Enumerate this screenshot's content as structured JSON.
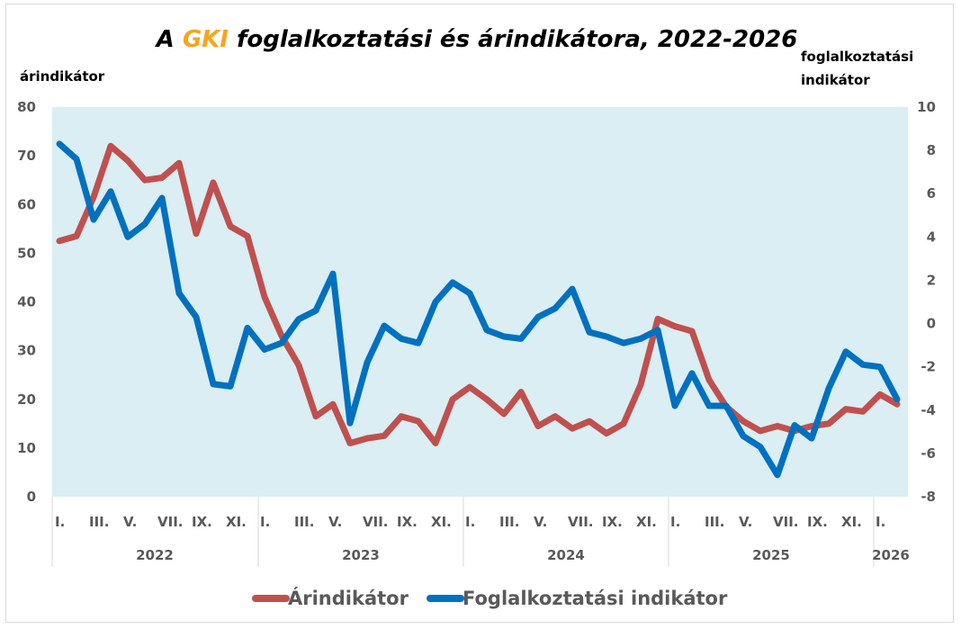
{
  "chart_data": {
    "type": "line",
    "title_parts": {
      "prefix": "A ",
      "accent": "GKI",
      "suffix": " foglalkoztatási és árindikátora, 2022-2026"
    },
    "y_left_label": "árindikátor",
    "y_right_label_line1": "foglalkoztatási",
    "y_right_label_line2": "indikátor",
    "y_left_range": [
      0,
      80
    ],
    "y_left_ticks": [
      "0",
      "10",
      "20",
      "30",
      "40",
      "50",
      "60",
      "70",
      "80"
    ],
    "y_right_range": [
      -8,
      10
    ],
    "y_right_ticks": [
      "-8",
      "-6",
      "-4",
      "-2",
      "0",
      "2",
      "4",
      "6",
      "8",
      "10"
    ],
    "month_labels": [
      "I.",
      "III.",
      "V.",
      "VII.",
      "IX.",
      "XI.",
      "I.",
      "III.",
      "V.",
      "VII.",
      "IX.",
      "XI.",
      "I.",
      "III.",
      "V.",
      "VII.",
      "IX.",
      "XI.",
      "I.",
      "III.",
      "V.",
      "VII.",
      "IX.",
      "XI.",
      "I."
    ],
    "years": [
      "2022",
      "2023",
      "2024",
      "2025",
      "2026"
    ],
    "series": [
      {
        "name": "Árindikátor",
        "axis": "left",
        "color": "#c0504d",
        "values": [
          52.5,
          53.5,
          61.5,
          72,
          69,
          65,
          65.5,
          68.5,
          54,
          64.5,
          55.5,
          53.5,
          41,
          33,
          27,
          16.5,
          19,
          11,
          12,
          12.5,
          16.5,
          15.5,
          11,
          20,
          22.5,
          20,
          17,
          21.5,
          14.5,
          16.5,
          14,
          15.5,
          13,
          15,
          23,
          36.5,
          35,
          34,
          24,
          18.5,
          15.5,
          13.5,
          14.5,
          13.5,
          14.5,
          15,
          18,
          17.5,
          21,
          19
        ]
      },
      {
        "name": "Foglalkoztatási indikátor",
        "axis": "right",
        "color": "#0070c0",
        "values": [
          8.3,
          7.6,
          4.8,
          6.1,
          4,
          4.6,
          5.8,
          1.4,
          0.3,
          -2.8,
          -2.9,
          -0.2,
          -1.2,
          -0.9,
          0.2,
          0.6,
          2.3,
          -4.6,
          -1.8,
          -0.1,
          -0.7,
          -0.9,
          1,
          1.9,
          1.4,
          -0.3,
          -0.6,
          -0.7,
          0.3,
          0.7,
          1.6,
          -0.4,
          -0.6,
          -0.9,
          -0.7,
          -0.3,
          -3.8,
          -2.3,
          -3.8,
          -3.8,
          -5.2,
          -5.7,
          -7,
          -4.7,
          -5.3,
          -3,
          -1.3,
          -1.9,
          -2,
          -3.5
        ]
      }
    ],
    "grid": false,
    "legend_position": "bottom-center"
  }
}
